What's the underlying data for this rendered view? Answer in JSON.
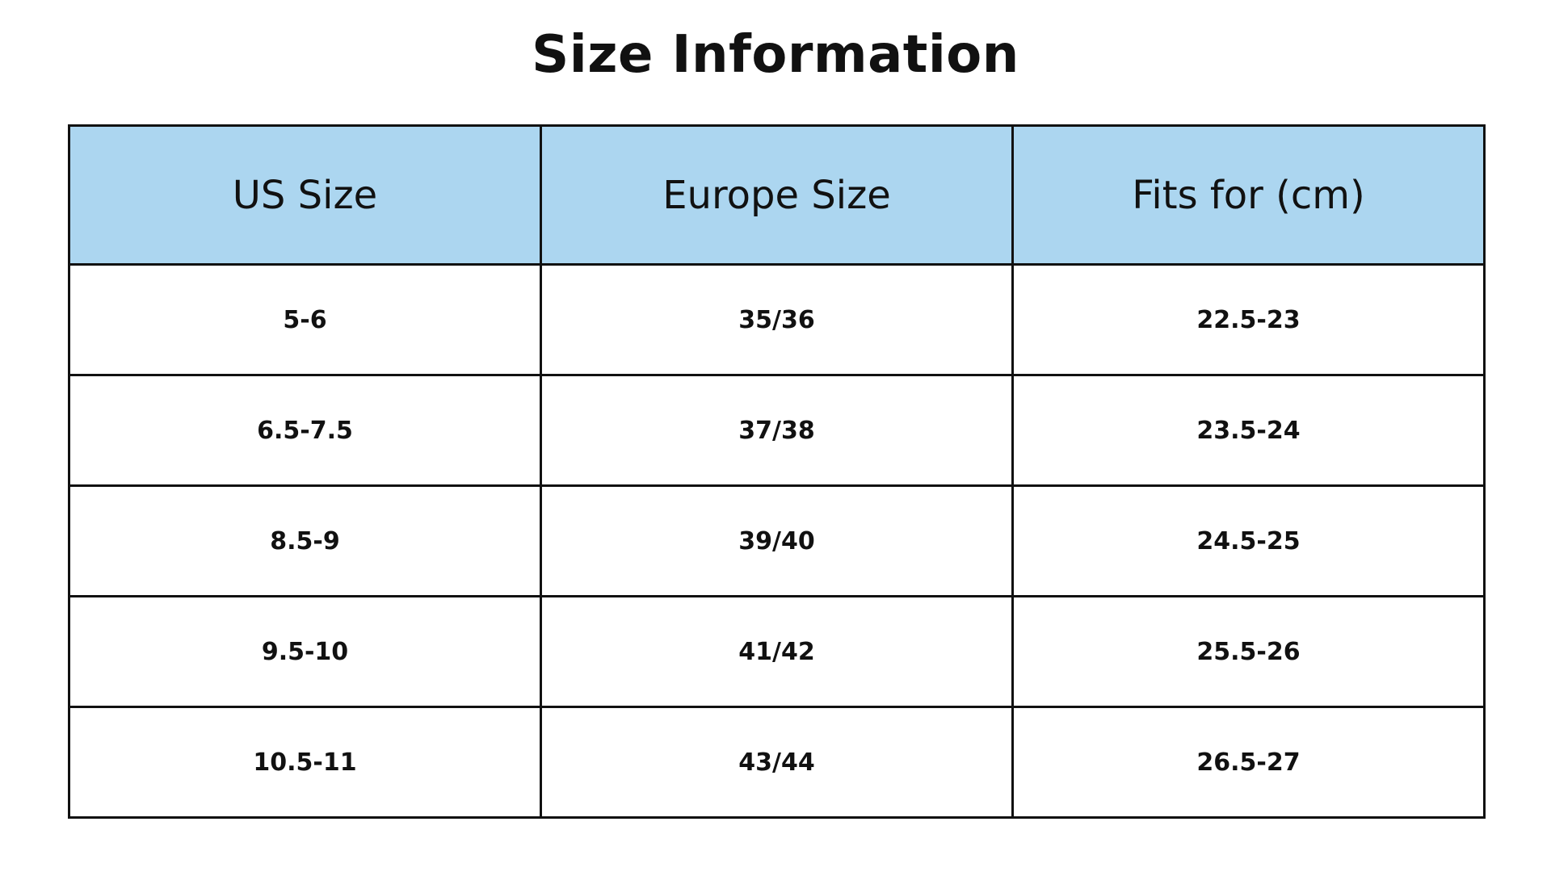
{
  "title": "Size Information",
  "colors": {
    "header_background": "#acd6f0",
    "border": "#111111",
    "text": "#111111"
  },
  "table": {
    "headers": [
      "US Size",
      "Europe Size",
      "Fits for (cm)"
    ],
    "rows": [
      [
        "5-6",
        "35/36",
        "22.5-23"
      ],
      [
        "6.5-7.5",
        "37/38",
        "23.5-24"
      ],
      [
        "8.5-9",
        "39/40",
        "24.5-25"
      ],
      [
        "9.5-10",
        "41/42",
        "25.5-26"
      ],
      [
        "10.5-11",
        "43/44",
        "26.5-27"
      ]
    ]
  }
}
